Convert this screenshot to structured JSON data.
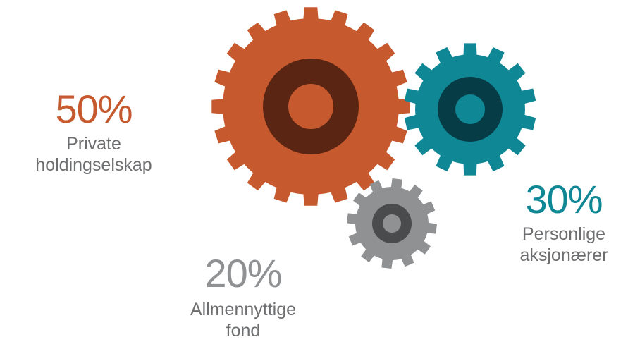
{
  "colors": {
    "orange": "#c65a2e",
    "orange_dark": "#5a2513",
    "teal": "#0f8795",
    "teal_dark": "#063c45",
    "gray": "#909193",
    "gray_dark": "#4a4b4d",
    "label_gray": "#6d6e70"
  },
  "chart_data": {
    "type": "gear-infographic",
    "items": [
      {
        "value_label": "50%",
        "value": 50,
        "line1": "Private",
        "line2": "holdingselskap",
        "color": "#c65a2e"
      },
      {
        "value_label": "30%",
        "value": 30,
        "line1": "Personlige",
        "line2": "aksjonærer",
        "color": "#0f8795"
      },
      {
        "value_label": "20%",
        "value": 20,
        "line1": "Allmennyttige",
        "line2": "fond",
        "color": "#909193"
      }
    ]
  }
}
